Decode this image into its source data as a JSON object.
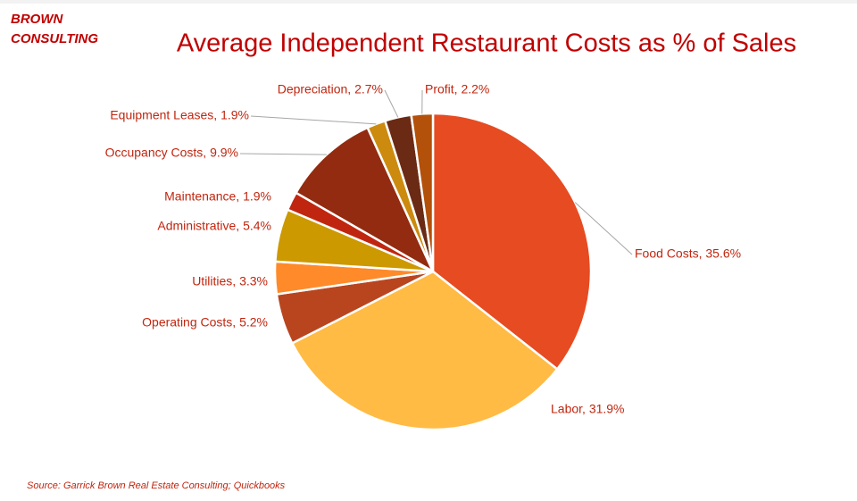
{
  "brand": [
    "BROWN",
    "CONSULTING"
  ],
  "source": "Source: Garrick Brown  Real Estate Consulting; Quickbooks",
  "chart_data": {
    "type": "pie",
    "title": "Average Independent Restaurant Costs as % of Sales",
    "values": [
      35.6,
      31.9,
      5.2,
      3.3,
      5.4,
      1.9,
      9.9,
      1.9,
      2.7,
      2.2
    ],
    "value_labels": [
      "Food Costs, 35.6%",
      "Labor, 31.9%",
      "Operating Costs, 5.2%",
      "Utilities, 3.3%",
      "Administrative,  5.4%",
      "Maintenance, 1.9%",
      "Occupancy Costs, 9.9%",
      "Equipment  Leases, 1.9%",
      "Depreciation, 2.7%",
      "Profit, 2.2%"
    ],
    "colors": [
      "#E64B22",
      "#FFBB44",
      "#B9451F",
      "#FF8A2A",
      "#CC9900",
      "#C0260F",
      "#922B10",
      "#CC8A0E",
      "#6B2A14",
      "#B3500A"
    ]
  }
}
